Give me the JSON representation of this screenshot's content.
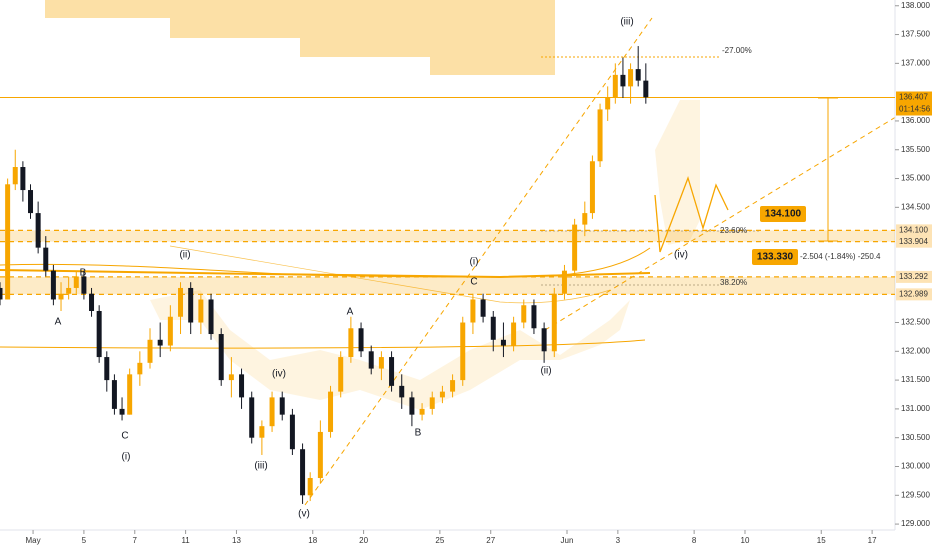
{
  "chart_data": {
    "type": "candlestick",
    "xlim": [
      -1.3,
      33.9
    ],
    "ylim": [
      128.55,
      138.1
    ],
    "xticks": [
      {
        "value": 0,
        "label": "May"
      },
      {
        "value": 2,
        "label": "5"
      },
      {
        "value": 4,
        "label": "7"
      },
      {
        "value": 6,
        "label": "11"
      },
      {
        "value": 8,
        "label": "13"
      },
      {
        "value": 11,
        "label": "18"
      },
      {
        "value": 13,
        "label": "20"
      },
      {
        "value": 16,
        "label": "25"
      },
      {
        "value": 18,
        "label": "27"
      },
      {
        "value": 21,
        "label": "Jun"
      },
      {
        "value": 23,
        "label": "3"
      },
      {
        "value": 26,
        "label": "8"
      },
      {
        "value": 28,
        "label": "10"
      },
      {
        "value": 31,
        "label": "15"
      },
      {
        "value": 33,
        "label": "17"
      }
    ],
    "yticks": [
      {
        "value": 138,
        "label": "138.000"
      },
      {
        "value": 137.5,
        "label": "137.500"
      },
      {
        "value": 137,
        "label": "137.000"
      },
      {
        "value": 136,
        "label": "136.000"
      },
      {
        "value": 135.5,
        "label": "135.500"
      },
      {
        "value": 135,
        "label": "135.000"
      },
      {
        "value": 134.5,
        "label": "134.500"
      },
      {
        "value": 132.5,
        "label": "132.500"
      },
      {
        "value": 132,
        "label": "132.000"
      },
      {
        "value": 131.5,
        "label": "131.500"
      },
      {
        "value": 131,
        "label": "131.000"
      },
      {
        "value": 130.5,
        "label": "130.500"
      },
      {
        "value": 130,
        "label": "130.000"
      },
      {
        "value": 129.5,
        "label": "129.500"
      },
      {
        "value": 129,
        "label": "129.000"
      }
    ],
    "up_color": "#f7a600",
    "down_color": "#131722",
    "x": [
      -1.3,
      -1.0,
      -0.7,
      -0.4,
      -0.1,
      0.2,
      0.5,
      0.8,
      1.1,
      1.4,
      1.7,
      2.0,
      2.3,
      2.6,
      2.9,
      3.2,
      3.5,
      3.8,
      4.2,
      4.6,
      5.0,
      5.4,
      5.8,
      6.2,
      6.6,
      7.0,
      7.4,
      7.8,
      8.2,
      8.6,
      9.0,
      9.4,
      9.8,
      10.2,
      10.6,
      10.9,
      11.3,
      11.7,
      12.1,
      12.5,
      12.9,
      13.3,
      13.7,
      14.1,
      14.5,
      14.9,
      15.3,
      15.7,
      16.1,
      16.5,
      16.9,
      17.3,
      17.7,
      18.1,
      18.5,
      18.9,
      19.3,
      19.7,
      20.1,
      20.5,
      20.9,
      21.3,
      21.7,
      22.0,
      22.3,
      22.6,
      22.9,
      23.2,
      23.5,
      23.8,
      24.1
    ],
    "open": [
      133.1,
      132.9,
      134.9,
      135.2,
      134.8,
      134.4,
      133.8,
      133.4,
      132.9,
      133.0,
      133.1,
      133.3,
      133.0,
      132.7,
      131.9,
      131.5,
      131.0,
      130.9,
      131.6,
      131.8,
      132.2,
      132.1,
      132.6,
      133.1,
      132.5,
      132.9,
      132.3,
      131.5,
      131.6,
      131.2,
      130.5,
      130.7,
      131.2,
      130.9,
      130.3,
      129.5,
      129.8,
      130.6,
      131.3,
      131.9,
      132.4,
      132.0,
      131.7,
      131.9,
      131.4,
      131.2,
      130.9,
      131.0,
      131.2,
      131.3,
      131.5,
      132.5,
      132.9,
      132.6,
      132.2,
      132.1,
      132.5,
      132.8,
      132.4,
      132.0,
      133.0,
      133.4,
      134.2,
      134.4,
      135.3,
      136.2,
      136.4,
      136.8,
      136.6,
      136.9,
      136.7
    ],
    "high": [
      133.2,
      135.0,
      135.5,
      135.3,
      134.9,
      134.6,
      134.0,
      133.5,
      133.2,
      133.3,
      133.4,
      133.4,
      133.1,
      132.8,
      132.0,
      131.6,
      131.2,
      131.7,
      132.0,
      132.4,
      132.5,
      132.8,
      133.2,
      133.2,
      133.0,
      133.0,
      132.4,
      131.9,
      131.7,
      131.3,
      130.8,
      131.3,
      131.3,
      131.0,
      130.4,
      129.9,
      130.8,
      131.4,
      132.0,
      132.6,
      132.5,
      132.1,
      132.0,
      132.0,
      131.6,
      131.3,
      131.1,
      131.3,
      131.4,
      131.6,
      132.6,
      133.0,
      133.0,
      132.7,
      132.5,
      132.6,
      132.9,
      132.9,
      132.5,
      133.1,
      133.5,
      134.3,
      134.6,
      135.4,
      136.3,
      136.6,
      137.0,
      137.1,
      137.0,
      137.3,
      137.0
    ],
    "low": [
      132.8,
      132.9,
      134.8,
      134.6,
      134.3,
      133.7,
      133.3,
      132.8,
      132.7,
      132.9,
      133.0,
      132.9,
      132.6,
      131.8,
      131.3,
      130.9,
      130.8,
      130.9,
      131.4,
      131.7,
      131.9,
      132.0,
      132.3,
      132.3,
      132.3,
      132.2,
      131.4,
      131.2,
      131.0,
      130.4,
      130.2,
      130.6,
      130.8,
      130.2,
      129.35,
      129.4,
      129.7,
      130.5,
      131.2,
      131.8,
      131.9,
      131.6,
      131.5,
      131.3,
      131.0,
      130.7,
      130.8,
      130.9,
      131.1,
      131.2,
      131.4,
      132.3,
      132.5,
      132.0,
      131.9,
      132.0,
      132.4,
      132.3,
      131.8,
      131.9,
      132.9,
      133.3,
      134.0,
      134.3,
      135.2,
      136.0,
      136.3,
      136.4,
      136.3,
      136.6,
      136.3
    ],
    "close": [
      132.9,
      134.9,
      135.2,
      134.8,
      134.4,
      133.8,
      133.4,
      132.9,
      133.0,
      133.1,
      133.3,
      133.0,
      132.7,
      131.9,
      131.5,
      131.0,
      130.9,
      131.6,
      131.8,
      132.2,
      132.1,
      132.6,
      133.1,
      132.5,
      132.9,
      132.3,
      131.5,
      131.6,
      131.2,
      130.5,
      130.7,
      131.2,
      130.9,
      130.3,
      129.5,
      129.8,
      130.6,
      131.3,
      131.9,
      132.4,
      132.0,
      131.7,
      131.9,
      131.4,
      131.2,
      130.9,
      131.0,
      131.2,
      131.3,
      131.5,
      132.5,
      132.9,
      132.6,
      132.2,
      132.1,
      132.5,
      132.8,
      132.4,
      132.0,
      133.0,
      133.4,
      134.2,
      134.4,
      135.3,
      136.2,
      136.4,
      136.8,
      136.6,
      136.9,
      136.7,
      136.41
    ],
    "levels": [
      {
        "value": 136.407,
        "label": "136.407"
      },
      {
        "value": 134.1,
        "label": "134.100"
      },
      {
        "value": 133.904,
        "label": "133.904"
      },
      {
        "value": 133.292,
        "label": "133.292"
      },
      {
        "value": 132.989,
        "label": "132.989"
      }
    ],
    "countdown": "01:14:56",
    "annotations": [
      "(iii)",
      "-27.00%",
      "23.60%",
      "38.20%",
      "(ii)",
      "(i)",
      "(iv)",
      "B",
      "C",
      "A",
      "A",
      "(iv)",
      "(ii)",
      "C",
      "(i)",
      "(iii)",
      "B",
      "(v)"
    ],
    "target_labels": [
      "134.100",
      "133.330"
    ],
    "measure_text": "-2.504 (-1.84%) -250.4"
  }
}
